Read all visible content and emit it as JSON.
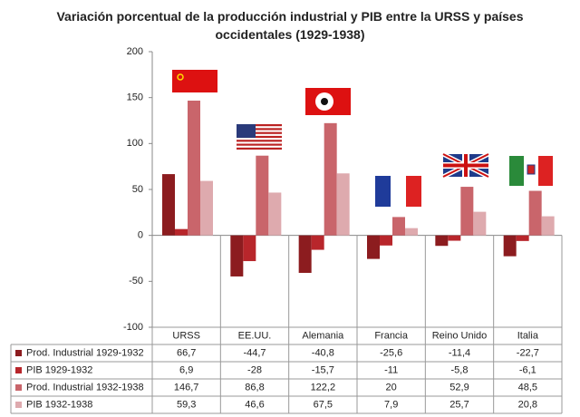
{
  "chart_data": {
    "type": "bar",
    "title": "Variación porcentual de la producción industrial y PIB entre la URSS y países occidentales (1929-1938)",
    "categories": [
      "URSS",
      "EE.UU.",
      "Alemania",
      "Francia",
      "Reino Unido",
      "Italia"
    ],
    "series": [
      {
        "name": "Prod. Industrial 1929-1932",
        "color": "#8c1c1f",
        "values": [
          66.7,
          -44.7,
          -40.8,
          -25.6,
          -11.4,
          -22.7
        ],
        "value_labels": [
          "66,7",
          "-44,7",
          "-40,8",
          "-25,6",
          "-11,4",
          "-22,7"
        ]
      },
      {
        "name": "PIB 1929-1932",
        "color": "#b8262b",
        "values": [
          6.9,
          -28,
          -15.7,
          -11,
          -5.8,
          -6.1
        ],
        "value_labels": [
          "6,9",
          "-28",
          "-15,7",
          "-11",
          "-5,8",
          "-6,1"
        ]
      },
      {
        "name": "Prod. Industrial 1932-1938",
        "color": "#c9656b",
        "values": [
          146.7,
          86.8,
          122.2,
          20,
          52.9,
          48.5
        ],
        "value_labels": [
          "146,7",
          "86,8",
          "122,2",
          "20",
          "52,9",
          "48,5"
        ]
      },
      {
        "name": "PIB 1932-1938",
        "color": "#deaaae",
        "values": [
          59.3,
          46.6,
          67.5,
          7.9,
          25.7,
          20.8
        ],
        "value_labels": [
          "59,3",
          "46,6",
          "67,5",
          "7,9",
          "25,7",
          "20,8"
        ]
      }
    ],
    "ylim": [
      -100,
      200
    ],
    "yticks": [
      -100,
      -50,
      0,
      50,
      100,
      150,
      200
    ],
    "grid": false
  }
}
